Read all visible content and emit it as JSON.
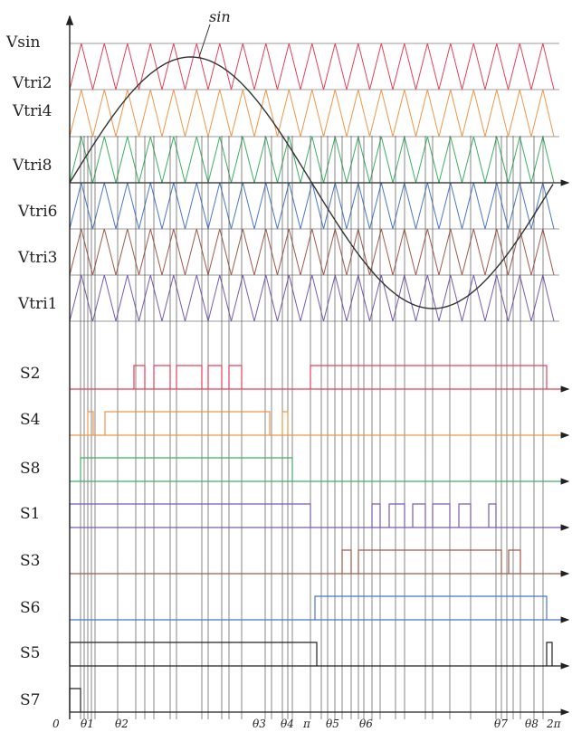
{
  "carrier_labels": [
    "Vsin",
    "Vtri2",
    "Vtri4",
    "Vtri8",
    "Vtri6",
    "Vtri3",
    "Vtri1"
  ],
  "sin_label": "sin",
  "switch_labels": [
    "S2",
    "S4",
    "S8",
    "S1",
    "S3",
    "S6",
    "S5",
    "S7"
  ],
  "x_ticks": [
    "0",
    "θ1",
    "θ2",
    "θ3",
    "θ4",
    "π",
    "θ5",
    "θ6",
    "θ7",
    "θ8",
    "2π"
  ],
  "colors": {
    "red": "#e8405a",
    "orange": "#f0964a",
    "green": "#3cb064",
    "blue": "#4a78c8",
    "brown": "#a05a4a",
    "purple": "#7a5ab0",
    "black": "#222222",
    "gray": "#7a7a7a"
  },
  "carrier_colors": [
    "red",
    "orange",
    "green",
    "blue",
    "brown",
    "purple"
  ],
  "switch_colors": [
    "red",
    "orange",
    "green",
    "purple",
    "brown",
    "blue",
    "black",
    "black"
  ]
}
